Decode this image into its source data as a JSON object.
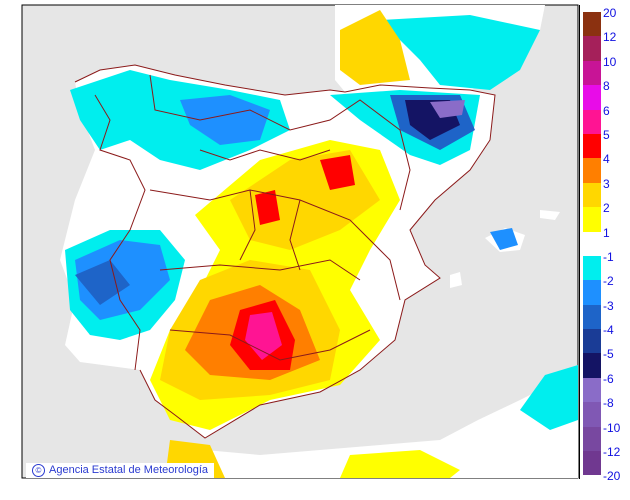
{
  "credit": {
    "symbol": "©",
    "text": "Agencia Estatal de Meteorología"
  },
  "legend": {
    "labels": [
      "20",
      "12",
      "10",
      "8",
      "6",
      "5",
      "4",
      "3",
      "2",
      "1",
      "",
      "-1",
      "-2",
      "-3",
      "-4",
      "-5",
      "-6",
      "-8",
      "-10",
      "-12"
    ],
    "last_label": "-20",
    "colors": [
      "#8b3110",
      "#a5205a",
      "#c81496",
      "#e80ce8",
      "#ff1493",
      "#ff0000",
      "#ff7f00",
      "#ffd700",
      "#ffff00",
      "#ffffff",
      "#00eeee",
      "#1e90ff",
      "#1e64c8",
      "#1a3c96",
      "#141464",
      "#8a6cc8",
      "#8058b4",
      "#7848a0",
      "#703890"
    ]
  },
  "colors": {
    "sea": "#e6e6e6",
    "land": "#ffffff",
    "border": "#8b1a1a"
  }
}
